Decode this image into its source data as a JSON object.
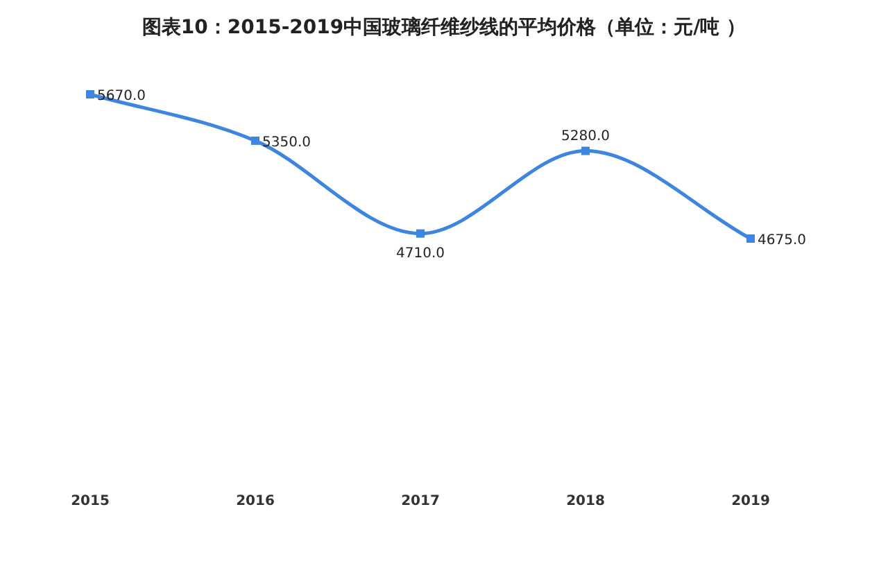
{
  "chart_data": {
    "type": "line",
    "title": "图表10：2015-2019中国玻璃纤维纱线的平均价格（单位：元/吨 ）",
    "categories": [
      "2015",
      "2016",
      "2017",
      "2018",
      "2019"
    ],
    "series": [
      {
        "color": "#3d85e0",
        "values": [
          5670,
          5350,
          4710,
          5280,
          4675
        ],
        "value_labels": [
          "5670.0",
          "5350.0",
          "4710.0",
          "5280.0",
          "4675.0"
        ]
      }
    ],
    "marker": "square"
  }
}
